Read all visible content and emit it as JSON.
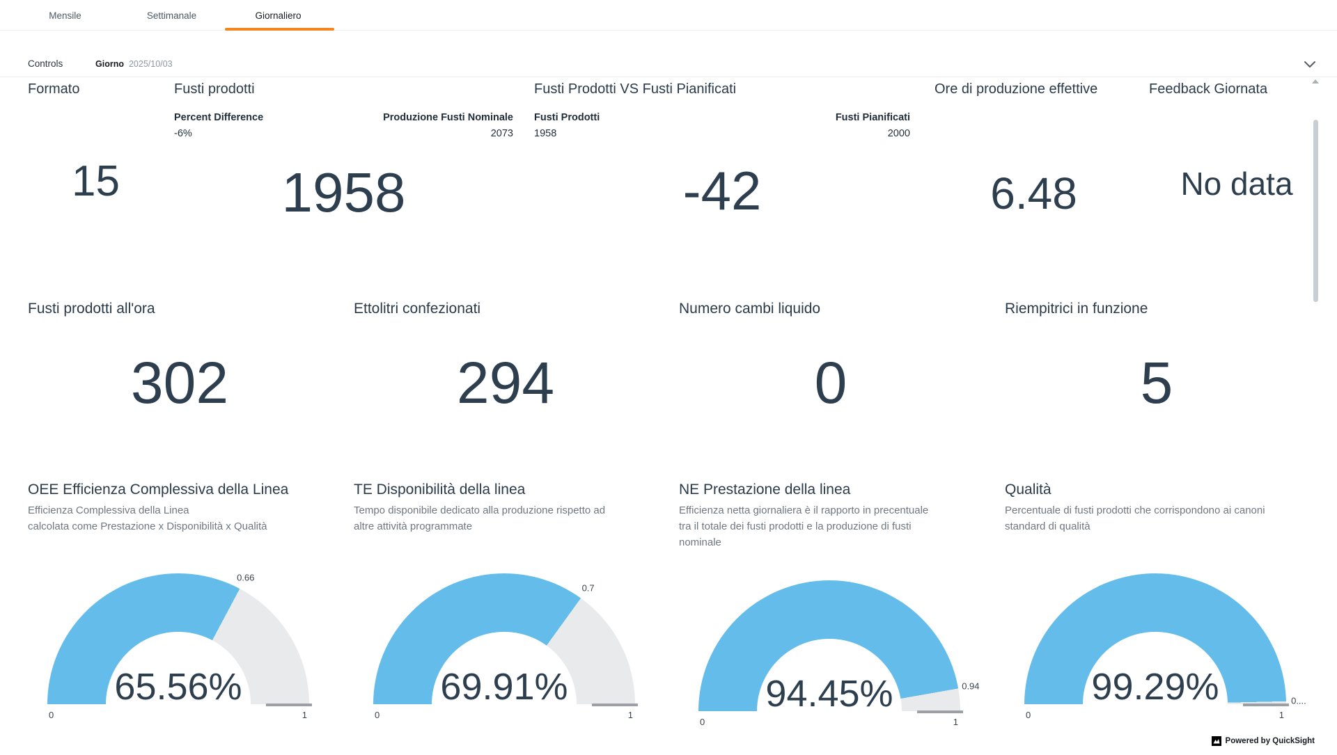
{
  "tabs": [
    {
      "label": "Mensile",
      "active": false
    },
    {
      "label": "Settimanale",
      "active": false
    },
    {
      "label": "Giornaliero",
      "active": true
    }
  ],
  "controls": {
    "label": "Controls",
    "filter_name": "Giorno",
    "filter_value": "2025/10/03"
  },
  "kpi_row1": [
    {
      "title": "Formato",
      "value": "15"
    },
    {
      "title": "Fusti prodotti",
      "comparisons": [
        {
          "label": "Percent Difference",
          "value": "-6%"
        },
        {
          "label": "Produzione Fusti Nominale",
          "value": "2073"
        }
      ],
      "value": "1958"
    },
    {
      "title": "Fusti Prodotti VS Fusti Pianificati",
      "comparisons": [
        {
          "label": "Fusti Prodotti",
          "value": "1958"
        },
        {
          "label": "Fusti Pianificati",
          "value": "2000"
        }
      ],
      "value": "-42"
    },
    {
      "title": "Ore di produzione effettive",
      "value": "6.48"
    },
    {
      "title": "Feedback Giornata",
      "value": "No data"
    }
  ],
  "kpi_row2": [
    {
      "title": "Fusti prodotti all'ora",
      "value": "302"
    },
    {
      "title": "Ettolitri confezionati",
      "value": "294"
    },
    {
      "title": "Numero cambi liquido",
      "value": "0"
    },
    {
      "title": "Riempitrici in funzione",
      "value": "5"
    }
  ],
  "chart_data": [
    {
      "type": "gauge",
      "title": "OEE Efficienza Complessiva della Linea",
      "subtitle": "Efficienza Complessiva della Linea\ncalcolata come Prestazione x Disponibilità x Qualità",
      "value": 0.6556,
      "value_label": "65.56%",
      "tick_label": "0.66",
      "min_label": "0",
      "max_label": "1",
      "range": [
        0,
        1
      ]
    },
    {
      "type": "gauge",
      "title": "TE Disponibilità della linea",
      "subtitle": "Tempo disponibile dedicato alla produzione rispetto ad\naltre attività programmate",
      "value": 0.6991,
      "value_label": "69.91%",
      "tick_label": "0.7",
      "min_label": "0",
      "max_label": "1",
      "range": [
        0,
        1
      ]
    },
    {
      "type": "gauge",
      "title": "NE Prestazione della linea",
      "subtitle": "Efficienza netta giornaliera è il rapporto in precentuale\ntra il totale dei fusti prodotti e la produzione di fusti\nnominale",
      "value": 0.9445,
      "value_label": "94.45%",
      "tick_label": "0.94",
      "min_label": "0",
      "max_label": "1",
      "range": [
        0,
        1
      ]
    },
    {
      "type": "gauge",
      "title": "Qualità",
      "subtitle": "Percentuale di fusti prodotti che corrispondono ai canoni\nstandard di qualità",
      "value": 0.9929,
      "value_label": "99.29%",
      "tick_label": "0....",
      "min_label": "0",
      "max_label": "1",
      "range": [
        0,
        1
      ]
    }
  ],
  "footer": {
    "powered_by": "Powered by QuickSight"
  },
  "colors": {
    "accent_orange": "#f5861f",
    "gauge_fill": "#63bce9",
    "gauge_track": "#e9eaeb",
    "target_tick": "#9aa0a5",
    "value_text": "#2d3e4e"
  }
}
